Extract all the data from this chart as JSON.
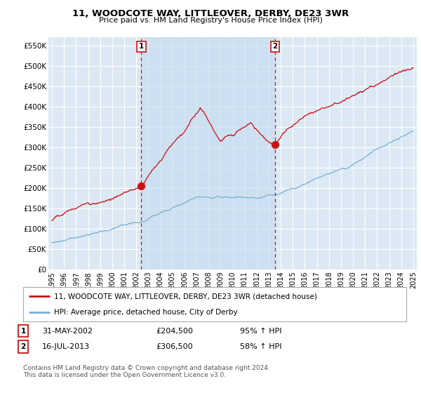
{
  "title": "11, WOODCOTE WAY, LITTLEOVER, DERBY, DE23 3WR",
  "subtitle": "Price paid vs. HM Land Registry's House Price Index (HPI)",
  "ylim": [
    0,
    570000
  ],
  "yticks": [
    0,
    50000,
    100000,
    150000,
    200000,
    250000,
    300000,
    350000,
    400000,
    450000,
    500000,
    550000
  ],
  "ytick_labels": [
    "£0",
    "£50K",
    "£100K",
    "£150K",
    "£200K",
    "£250K",
    "£300K",
    "£350K",
    "£400K",
    "£450K",
    "£500K",
    "£550K"
  ],
  "background_color": "#dce9f5",
  "shade_color": "#c8ddf0",
  "grid_color": "#ffffff",
  "red_line_color": "#cc1111",
  "blue_line_color": "#7ab0d4",
  "legend_label_red": "11, WOODCOTE WAY, LITTLEOVER, DERBY, DE23 3WR (detached house)",
  "legend_label_blue": "HPI: Average price, detached house, City of Derby",
  "transaction1_date": "31-MAY-2002",
  "transaction1_price": "£204,500",
  "transaction1_hpi": "95% ↑ HPI",
  "transaction2_date": "16-JUL-2013",
  "transaction2_price": "£306,500",
  "transaction2_hpi": "58% ↑ HPI",
  "footer": "Contains HM Land Registry data © Crown copyright and database right 2024.\nThis data is licensed under the Open Government Licence v3.0.",
  "marker1_x": 2002.42,
  "marker1_y": 204500,
  "marker2_x": 2013.54,
  "marker2_y": 306500,
  "vline1_x": 2002.42,
  "vline2_x": 2013.54,
  "xmin": 1994.7,
  "xmax": 2025.3
}
